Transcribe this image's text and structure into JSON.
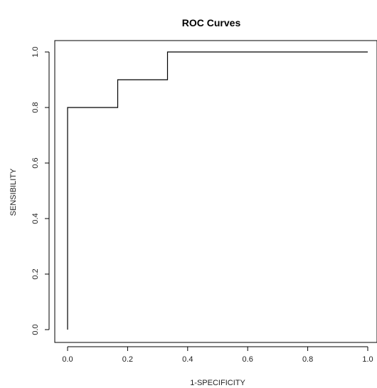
{
  "chart_data": {
    "type": "line",
    "title": "ROC Curves",
    "xlabel": "1-SPECIFICITY",
    "ylabel": "SENSIBILITY",
    "xlim": [
      0,
      1
    ],
    "ylim": [
      0,
      1
    ],
    "grid": false,
    "x_ticks": [
      "0.0",
      "0.2",
      "0.4",
      "0.6",
      "0.8",
      "1.0"
    ],
    "y_ticks": [
      "0.0",
      "0.2",
      "0.4",
      "0.6",
      "0.8",
      "1.0"
    ],
    "series": [
      {
        "x": [
          0,
          0,
          0.167,
          0.167,
          0.333,
          0.333,
          1.0
        ],
        "y": [
          0,
          0.8,
          0.8,
          0.9,
          0.9,
          1.0,
          1.0
        ]
      }
    ]
  }
}
